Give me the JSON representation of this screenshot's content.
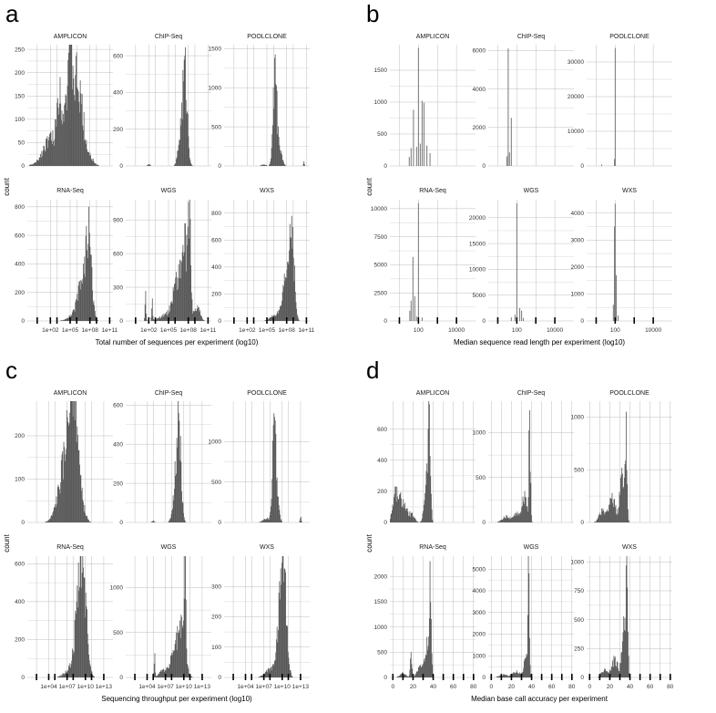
{
  "chart_data": [
    {
      "panel": "a",
      "type": "histogram",
      "xlabel": "Total number of sequences per experiment (log10)",
      "ylabel": "count",
      "x_scale": "log10",
      "xlim_log10": [
        -1.5,
        11.5
      ],
      "tick_labels": [
        "1e+02",
        "1e+05",
        "1e+08",
        "1e+11"
      ],
      "tick_values_log10": [
        2,
        5,
        8,
        11
      ],
      "minor_ticks_log10": [
        0,
        3,
        6,
        9
      ],
      "facets": [
        {
          "name": "AMPLICON",
          "ymax": 260,
          "yticks": [
            0,
            50,
            100,
            150,
            200,
            250
          ],
          "peaks": [
            [
              -1,
              2,
              0.12
            ],
            [
              -0.6,
              2,
              0.1
            ],
            [
              2.0,
              70,
              1.1
            ],
            [
              3.3,
              110,
              0.35
            ],
            [
              4.4,
              150,
              0.7
            ],
            [
              5.0,
              235,
              0.28
            ],
            [
              5.9,
              185,
              0.45
            ],
            [
              6.8,
              115,
              0.5
            ],
            [
              8.0,
              20,
              0.6
            ]
          ]
        },
        {
          "name": "ChIP-Seq",
          "ymax": 660,
          "yticks": [
            0,
            200,
            400,
            600
          ],
          "peaks": [
            [
              7.5,
              600,
              0.35
            ],
            [
              6.8,
              180,
              0.35
            ],
            [
              2.0,
              10,
              0.2
            ]
          ]
        },
        {
          "name": "POOLCLONE",
          "ymax": 1550,
          "yticks": [
            0,
            500,
            1000,
            1500
          ],
          "peaks": [
            [
              6.2,
              1380,
              0.28
            ],
            [
              6.8,
              300,
              0.4
            ],
            [
              4.5,
              20,
              0.4
            ],
            [
              10.6,
              60,
              0.08
            ]
          ]
        },
        {
          "name": "RNA-Seq",
          "ymax": 850,
          "yticks": [
            0,
            200,
            400,
            600,
            800
          ],
          "peaks": [
            [
              7.8,
              700,
              0.45
            ],
            [
              6.7,
              280,
              0.6
            ],
            [
              5.3,
              40,
              0.8
            ]
          ]
        },
        {
          "name": "WGS",
          "ymax": 1080,
          "yticks": [
            0,
            300,
            600,
            900
          ],
          "peaks": [
            [
              7.5,
              780,
              0.55
            ],
            [
              8.2,
              1000,
              0.15
            ],
            [
              6.2,
              380,
              0.6
            ],
            [
              4.6,
              60,
              1.0
            ],
            [
              1.5,
              250,
              0.08
            ],
            [
              2.5,
              200,
              0.08
            ],
            [
              9.4,
              140,
              0.4
            ]
          ]
        },
        {
          "name": "WXS",
          "ymax": 900,
          "yticks": [
            0,
            200,
            400,
            600,
            800
          ],
          "peaks": [
            [
              8.8,
              780,
              0.35
            ],
            [
              8.0,
              380,
              0.5
            ],
            [
              6.5,
              60,
              0.8
            ]
          ]
        }
      ]
    },
    {
      "panel": "b",
      "type": "histogram",
      "xlabel": "Median sequence read length per experiment (log10)",
      "ylabel": "count",
      "x_scale": "log10",
      "xlim_log10": [
        0.5,
        5.0
      ],
      "tick_labels": [
        "100",
        "10000"
      ],
      "tick_values_log10": [
        2,
        4
      ],
      "minor_ticks_log10": [
        1,
        3
      ],
      "facets": [
        {
          "name": "AMPLICON",
          "ymax": 1900,
          "yticks": [
            0,
            500,
            1000,
            1500
          ],
          "spikes": [
            [
              2.0,
              1850
            ],
            [
              1.75,
              880
            ],
            [
              2.2,
              1020
            ],
            [
              2.3,
              990
            ],
            [
              1.9,
              300
            ],
            [
              2.1,
              350
            ],
            [
              1.6,
              280
            ],
            [
              2.45,
              320
            ],
            [
              1.5,
              140
            ],
            [
              2.6,
              200
            ]
          ]
        },
        {
          "name": "ChIP-Seq",
          "ymax": 6300,
          "yticks": [
            0,
            2000,
            4000,
            6000
          ],
          "spikes": [
            [
              1.56,
              6100
            ],
            [
              1.7,
              2500
            ],
            [
              1.48,
              500
            ],
            [
              1.62,
              700
            ]
          ]
        },
        {
          "name": "POOLCLONE",
          "ymax": 35000,
          "yticks": [
            0,
            10000,
            20000,
            30000
          ],
          "spikes": [
            [
              2.0,
              34000
            ],
            [
              1.97,
              2000
            ],
            [
              1.3,
              400
            ]
          ]
        },
        {
          "name": "RNA-Seq",
          "ymax": 10800,
          "yticks": [
            0,
            2500,
            5000,
            7500,
            10000
          ],
          "spikes": [
            [
              2.0,
              10500
            ],
            [
              1.7,
              5700
            ],
            [
              1.6,
              1800
            ],
            [
              1.8,
              2200
            ],
            [
              1.55,
              900
            ],
            [
              1.9,
              400
            ],
            [
              2.2,
              300
            ]
          ]
        },
        {
          "name": "WGS",
          "ymax": 23500,
          "yticks": [
            0,
            5000,
            10000,
            15000,
            20000
          ],
          "spikes": [
            [
              2.0,
              22800
            ],
            [
              2.15,
              2500
            ],
            [
              2.25,
              2000
            ],
            [
              1.9,
              1200
            ],
            [
              1.7,
              700
            ],
            [
              2.35,
              600
            ]
          ]
        },
        {
          "name": "WXS",
          "ymax": 4500,
          "yticks": [
            0,
            1000,
            2000,
            3000,
            4000
          ],
          "spikes": [
            [
              2.0,
              4350
            ],
            [
              1.95,
              3500
            ],
            [
              2.05,
              1700
            ],
            [
              1.9,
              600
            ],
            [
              2.15,
              200
            ]
          ]
        }
      ]
    },
    {
      "panel": "c",
      "type": "histogram",
      "xlabel": "Sequencing throughput per experiment (log10)",
      "ylabel": "count",
      "x_scale": "log10",
      "xlim_log10": [
        0.5,
        14.5
      ],
      "tick_labels": [
        "1e+04",
        "1e+07",
        "1e+10",
        "1e+13"
      ],
      "tick_values_log10": [
        4,
        7,
        10,
        13
      ],
      "minor_ticks_log10": [
        2,
        5,
        8,
        11
      ],
      "facets": [
        {
          "name": "AMPLICON",
          "ymax": 280,
          "yticks": [
            0,
            100,
            200
          ],
          "peaks": [
            [
              6.8,
              170,
              1.1
            ],
            [
              7.8,
              230,
              0.6
            ],
            [
              8.4,
              180,
              0.5
            ],
            [
              9.5,
              40,
              0.5
            ]
          ]
        },
        {
          "name": "ChIP-Seq",
          "ymax": 620,
          "yticks": [
            0,
            200,
            400,
            600
          ],
          "peaks": [
            [
              9.2,
              560,
              0.35
            ],
            [
              8.6,
              200,
              0.4
            ],
            [
              5.0,
              10,
              0.2
            ]
          ]
        },
        {
          "name": "POOLCLONE",
          "ymax": 1500,
          "yticks": [
            0,
            500,
            1000
          ],
          "peaks": [
            [
              8.7,
              1350,
              0.28
            ],
            [
              9.2,
              300,
              0.3
            ],
            [
              7.5,
              60,
              0.6
            ],
            [
              13.0,
              70,
              0.1
            ]
          ]
        },
        {
          "name": "RNA-Seq",
          "ymax": 640,
          "yticks": [
            0,
            200,
            400,
            600
          ],
          "peaks": [
            [
              9.6,
              580,
              0.6
            ],
            [
              8.8,
              300,
              0.6
            ],
            [
              7.5,
              50,
              0.9
            ]
          ]
        },
        {
          "name": "WGS",
          "ymax": 1350,
          "yticks": [
            0,
            500,
            1000
          ],
          "peaks": [
            [
              10.2,
              1300,
              0.15
            ],
            [
              9.6,
              600,
              0.6
            ],
            [
              8.4,
              300,
              0.7
            ],
            [
              5.2,
              270,
              0.08
            ],
            [
              6.5,
              80,
              0.6
            ]
          ]
        },
        {
          "name": "WXS",
          "ymax": 400,
          "yticks": [
            0,
            100,
            200,
            300
          ],
          "peaks": [
            [
              10.3,
              360,
              0.45
            ],
            [
              9.6,
              200,
              0.5
            ],
            [
              8.0,
              30,
              0.8
            ]
          ]
        }
      ]
    },
    {
      "panel": "d",
      "type": "histogram",
      "xlabel": "Median base call accuracy per experiment",
      "ylabel": "count",
      "x_scale": "linear",
      "xlim": [
        -3,
        82
      ],
      "tick_labels": [
        "0",
        "20",
        "40",
        "60",
        "80"
      ],
      "tick_values": [
        0,
        20,
        40,
        60,
        80
      ],
      "minor_ticks": [
        10,
        30,
        50,
        70
      ],
      "facets": [
        {
          "name": "AMPLICON",
          "ymax": 780,
          "yticks": [
            0,
            200,
            400,
            600
          ],
          "peaks": [
            [
              3,
              230,
              3.0
            ],
            [
              10,
              150,
              3.0
            ],
            [
              18,
              60,
              3.0
            ],
            [
              36,
              720,
              1.2
            ],
            [
              33,
              300,
              2.0
            ]
          ]
        },
        {
          "name": "ChIP-Seq",
          "ymax": 1350,
          "yticks": [
            0,
            500,
            1000
          ],
          "peaks": [
            [
              38,
              1250,
              0.8
            ],
            [
              33,
              350,
              2.0
            ],
            [
              26,
              120,
              3.0
            ],
            [
              15,
              80,
              4.0
            ]
          ]
        },
        {
          "name": "POOLCLONE",
          "ymax": 1150,
          "yticks": [
            0,
            500,
            1000
          ],
          "peaks": [
            [
              36,
              1050,
              1.0
            ],
            [
              32,
              520,
              2.0
            ],
            [
              22,
              280,
              3.5
            ],
            [
              12,
              120,
              3.0
            ]
          ]
        },
        {
          "name": "RNA-Seq",
          "ymax": 2400,
          "yticks": [
            0,
            500,
            1000,
            1500,
            2000
          ],
          "peaks": [
            [
              37,
              2300,
              1.0
            ],
            [
              34,
              800,
              2.0
            ],
            [
              18,
              500,
              0.8
            ],
            [
              27,
              250,
              3.0
            ],
            [
              10,
              100,
              3.0
            ]
          ]
        },
        {
          "name": "WGS",
          "ymax": 5600,
          "yticks": [
            0,
            1000,
            2000,
            3000,
            4000,
            5000
          ],
          "peaks": [
            [
              37,
              5300,
              0.8
            ],
            [
              34,
              900,
              2.0
            ],
            [
              25,
              300,
              4.0
            ],
            [
              12,
              150,
              4.0
            ]
          ]
        },
        {
          "name": "WXS",
          "ymax": 1050,
          "yticks": [
            0,
            250,
            500,
            750,
            1000
          ],
          "peaks": [
            [
              37,
              1000,
              0.9
            ],
            [
              34,
              500,
              2.0
            ],
            [
              25,
              180,
              3.0
            ],
            [
              15,
              80,
              3.0
            ]
          ]
        }
      ]
    }
  ]
}
